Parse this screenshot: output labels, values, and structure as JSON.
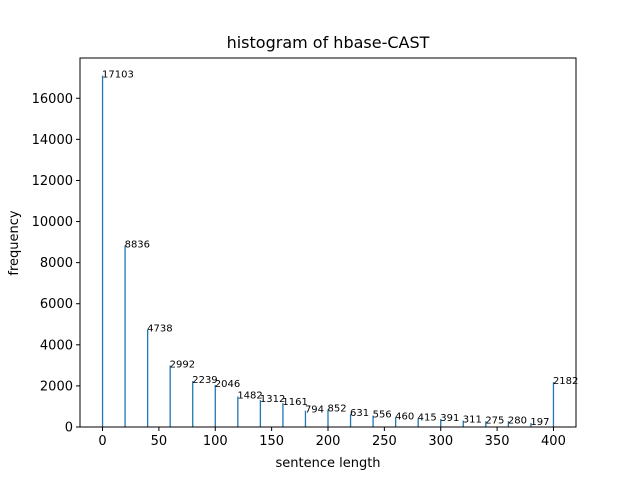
{
  "chart_data": {
    "type": "bar",
    "title": "histogram of hbase-CAST",
    "xlabel": "sentence length",
    "ylabel": "frequency",
    "xlim": [
      -20,
      420
    ],
    "ylim": [
      0,
      17960
    ],
    "xticks": [
      0,
      50,
      100,
      150,
      200,
      250,
      300,
      350,
      400
    ],
    "yticks": [
      0,
      2000,
      4000,
      6000,
      8000,
      10000,
      12000,
      14000,
      16000
    ],
    "bar_color": "#1f77b4",
    "grid": false,
    "legend": "none",
    "x": [
      0,
      20,
      40,
      60,
      80,
      100,
      120,
      140,
      160,
      180,
      200,
      220,
      240,
      260,
      280,
      300,
      320,
      340,
      360,
      380,
      400
    ],
    "values": [
      17103,
      8836,
      4738,
      2992,
      2239,
      2046,
      1482,
      1312,
      1161,
      794,
      852,
      631,
      556,
      460,
      415,
      391,
      311,
      275,
      280,
      197,
      2182
    ]
  }
}
